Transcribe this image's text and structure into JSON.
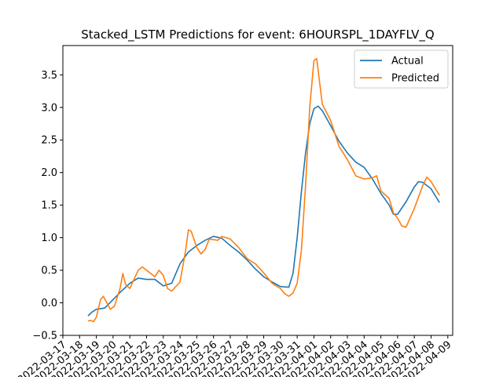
{
  "chart_data": {
    "type": "line",
    "title": "Stacked_LSTM Predictions for event: 6HOURSPL_1DAYFLV_Q",
    "xlabel": "",
    "ylabel": "",
    "x_ticks": [
      "2022-03-17",
      "2022-03-18",
      "2022-03-19",
      "2022-03-20",
      "2022-03-21",
      "2022-03-22",
      "2022-03-23",
      "2022-03-24",
      "2022-03-25",
      "2022-03-26",
      "2022-03-27",
      "2022-03-28",
      "2022-03-29",
      "2022-03-30",
      "2022-03-31",
      "2022-04-01",
      "2022-04-02",
      "2022-04-03",
      "2022-04-04",
      "2022-04-05",
      "2022-04-06",
      "2022-04-07",
      "2022-04-08",
      "2022-04-09"
    ],
    "y_ticks": [
      "−0.5",
      "0.0",
      "0.5",
      "1.0",
      "1.5",
      "2.0",
      "2.5",
      "3.0",
      "3.5"
    ],
    "ylim": [
      -0.5,
      3.95
    ],
    "xlim": [
      "2022-03-17T00:00",
      "2022-04-09T07:00"
    ],
    "grid": false,
    "legend_position": "upper right",
    "series": [
      {
        "name": "Actual",
        "color": "#1f77b4",
        "points": [
          [
            "2022-03-18T12:00",
            -0.2
          ],
          [
            "2022-03-18T18:00",
            -0.14
          ],
          [
            "2022-03-19T00:00",
            -0.1
          ],
          [
            "2022-03-19T12:00",
            -0.08
          ],
          [
            "2022-03-20T00:00",
            0.05
          ],
          [
            "2022-03-20T12:00",
            0.18
          ],
          [
            "2022-03-21T00:00",
            0.3
          ],
          [
            "2022-03-21T12:00",
            0.38
          ],
          [
            "2022-03-22T00:00",
            0.36
          ],
          [
            "2022-03-22T12:00",
            0.36
          ],
          [
            "2022-03-23T00:00",
            0.26
          ],
          [
            "2022-03-23T12:00",
            0.3
          ],
          [
            "2022-03-24T00:00",
            0.6
          ],
          [
            "2022-03-24T12:00",
            0.78
          ],
          [
            "2022-03-25T00:00",
            0.88
          ],
          [
            "2022-03-25T12:00",
            0.96
          ],
          [
            "2022-03-26T00:00",
            1.02
          ],
          [
            "2022-03-26T12:00",
            0.99
          ],
          [
            "2022-03-27T00:00",
            0.88
          ],
          [
            "2022-03-27T12:00",
            0.78
          ],
          [
            "2022-03-28T00:00",
            0.66
          ],
          [
            "2022-03-28T12:00",
            0.52
          ],
          [
            "2022-03-29T00:00",
            0.4
          ],
          [
            "2022-03-29T12:00",
            0.32
          ],
          [
            "2022-03-30T00:00",
            0.25
          ],
          [
            "2022-03-30T12:00",
            0.24
          ],
          [
            "2022-03-30T18:00",
            0.45
          ],
          [
            "2022-03-31T00:00",
            1.0
          ],
          [
            "2022-03-31T06:00",
            1.7
          ],
          [
            "2022-03-31T12:00",
            2.3
          ],
          [
            "2022-03-31T18:00",
            2.75
          ],
          [
            "2022-04-01T00:00",
            2.98
          ],
          [
            "2022-04-01T06:00",
            3.02
          ],
          [
            "2022-04-01T12:00",
            2.95
          ],
          [
            "2022-04-02T00:00",
            2.72
          ],
          [
            "2022-04-02T12:00",
            2.48
          ],
          [
            "2022-04-03T00:00",
            2.3
          ],
          [
            "2022-04-03T12:00",
            2.16
          ],
          [
            "2022-04-04T00:00",
            2.08
          ],
          [
            "2022-04-04T12:00",
            1.9
          ],
          [
            "2022-04-05T00:00",
            1.68
          ],
          [
            "2022-04-05T12:00",
            1.5
          ],
          [
            "2022-04-05T18:00",
            1.36
          ],
          [
            "2022-04-06T00:00",
            1.36
          ],
          [
            "2022-04-06T12:00",
            1.55
          ],
          [
            "2022-04-07T00:00",
            1.78
          ],
          [
            "2022-04-07T06:00",
            1.86
          ],
          [
            "2022-04-07T12:00",
            1.85
          ],
          [
            "2022-04-08T00:00",
            1.75
          ],
          [
            "2022-04-08T12:00",
            1.54
          ]
        ]
      },
      {
        "name": "Predicted",
        "color": "#ff7f0e",
        "points": [
          [
            "2022-03-18T12:00",
            -0.28
          ],
          [
            "2022-03-18T16:00",
            -0.27
          ],
          [
            "2022-03-18T20:00",
            -0.29
          ],
          [
            "2022-03-19T00:00",
            -0.22
          ],
          [
            "2022-03-19T06:00",
            0.05
          ],
          [
            "2022-03-19T10:00",
            0.1
          ],
          [
            "2022-03-19T14:00",
            0.02
          ],
          [
            "2022-03-19T20:00",
            -0.1
          ],
          [
            "2022-03-20T02:00",
            -0.05
          ],
          [
            "2022-03-20T10:00",
            0.22
          ],
          [
            "2022-03-20T14:00",
            0.45
          ],
          [
            "2022-03-20T18:00",
            0.28
          ],
          [
            "2022-03-21T00:00",
            0.22
          ],
          [
            "2022-03-21T12:00",
            0.5
          ],
          [
            "2022-03-21T18:00",
            0.55
          ],
          [
            "2022-03-22T00:00",
            0.5
          ],
          [
            "2022-03-22T12:00",
            0.4
          ],
          [
            "2022-03-22T18:00",
            0.5
          ],
          [
            "2022-03-23T00:00",
            0.42
          ],
          [
            "2022-03-23T06:00",
            0.22
          ],
          [
            "2022-03-23T12:00",
            0.18
          ],
          [
            "2022-03-24T00:00",
            0.32
          ],
          [
            "2022-03-24T08:00",
            0.8
          ],
          [
            "2022-03-24T12:00",
            1.12
          ],
          [
            "2022-03-24T16:00",
            1.1
          ],
          [
            "2022-03-25T00:00",
            0.85
          ],
          [
            "2022-03-25T06:00",
            0.75
          ],
          [
            "2022-03-25T12:00",
            0.82
          ],
          [
            "2022-03-25T18:00",
            0.98
          ],
          [
            "2022-03-26T06:00",
            0.96
          ],
          [
            "2022-03-26T12:00",
            1.02
          ],
          [
            "2022-03-27T00:00",
            0.98
          ],
          [
            "2022-03-27T12:00",
            0.85
          ],
          [
            "2022-03-28T00:00",
            0.68
          ],
          [
            "2022-03-28T12:00",
            0.6
          ],
          [
            "2022-03-29T00:00",
            0.46
          ],
          [
            "2022-03-29T12:00",
            0.3
          ],
          [
            "2022-03-30T00:00",
            0.22
          ],
          [
            "2022-03-30T06:00",
            0.14
          ],
          [
            "2022-03-30T12:00",
            0.1
          ],
          [
            "2022-03-30T18:00",
            0.15
          ],
          [
            "2022-03-31T00:00",
            0.3
          ],
          [
            "2022-03-31T06:00",
            0.8
          ],
          [
            "2022-03-31T12:00",
            1.8
          ],
          [
            "2022-03-31T18:00",
            3.0
          ],
          [
            "2022-04-01T00:00",
            3.72
          ],
          [
            "2022-04-01T04:00",
            3.75
          ],
          [
            "2022-04-01T08:00",
            3.4
          ],
          [
            "2022-04-01T12:00",
            3.05
          ],
          [
            "2022-04-02T00:00",
            2.8
          ],
          [
            "2022-04-02T12:00",
            2.4
          ],
          [
            "2022-04-03T00:00",
            2.2
          ],
          [
            "2022-04-03T12:00",
            1.95
          ],
          [
            "2022-04-04T00:00",
            1.9
          ],
          [
            "2022-04-04T12:00",
            1.92
          ],
          [
            "2022-04-04T18:00",
            1.95
          ],
          [
            "2022-04-05T00:00",
            1.72
          ],
          [
            "2022-04-05T12:00",
            1.6
          ],
          [
            "2022-04-05T18:00",
            1.38
          ],
          [
            "2022-04-06T00:00",
            1.3
          ],
          [
            "2022-04-06T06:00",
            1.18
          ],
          [
            "2022-04-06T12:00",
            1.16
          ],
          [
            "2022-04-07T00:00",
            1.45
          ],
          [
            "2022-04-07T12:00",
            1.8
          ],
          [
            "2022-04-07T18:00",
            1.93
          ],
          [
            "2022-04-08T00:00",
            1.86
          ],
          [
            "2022-04-08T12:00",
            1.65
          ]
        ]
      }
    ]
  }
}
